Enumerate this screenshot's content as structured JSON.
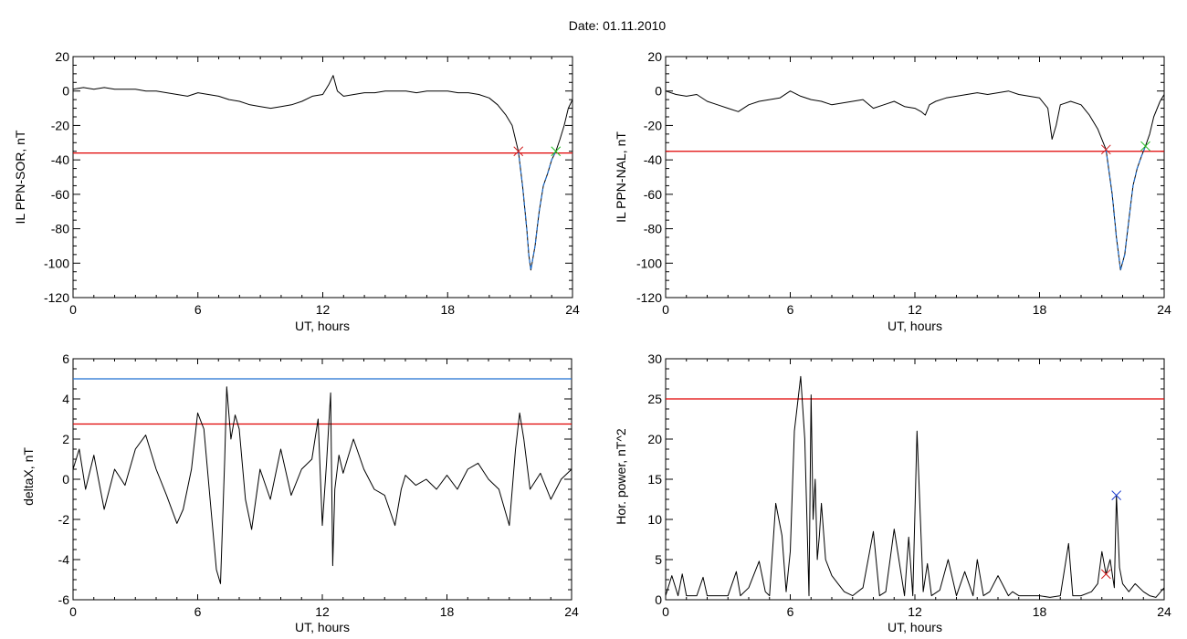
{
  "page": {
    "date_label": "Date:  01.11.2010"
  },
  "colors": {
    "data_line": "#000000",
    "threshold_red": "#e00000",
    "threshold_blue": "#1f6fd0",
    "highlight_blue": "#1f6fd0",
    "marker_red": "#d02020",
    "marker_green": "#20c020",
    "marker_blue": "#2040d0"
  },
  "chart_data": [
    {
      "type": "line",
      "id": "sor",
      "xlabel": "UT, hours",
      "ylabel": "IL PPN-SOR, nT",
      "xlim": [
        0,
        24
      ],
      "ylim": [
        -120,
        20
      ],
      "xticks": [
        0,
        6,
        12,
        18,
        24
      ],
      "yticks": [
        20,
        0,
        -20,
        -40,
        -60,
        -80,
        -100,
        -120
      ],
      "threshold": {
        "value": -36,
        "color": "#e00000"
      },
      "highlight": {
        "x_from": 21.4,
        "x_to": 23.2,
        "color": "#1f6fd0"
      },
      "markers": [
        {
          "x": 21.4,
          "y": -35,
          "color": "#d02020"
        },
        {
          "x": 23.2,
          "y": -35,
          "color": "#20c020"
        }
      ],
      "series": [
        {
          "x": [
            0,
            0.5,
            1,
            1.5,
            2,
            2.5,
            3,
            3.5,
            4,
            4.5,
            5,
            5.5,
            6,
            6.5,
            7,
            7.5,
            8,
            8.5,
            9,
            9.5,
            10,
            10.5,
            11,
            11.5,
            12,
            12.3,
            12.5,
            12.7,
            13,
            13.5,
            14,
            14.5,
            15,
            15.5,
            16,
            16.5,
            17,
            17.5,
            18,
            18.5,
            19,
            19.5,
            20,
            20.4,
            20.8,
            21.1,
            21.4,
            21.6,
            21.8,
            21.9,
            22.0,
            22.2,
            22.4,
            22.6,
            22.8,
            23.0,
            23.2,
            23.4,
            23.6,
            23.8,
            24
          ],
          "y": [
            1,
            2,
            1,
            2,
            1,
            1,
            1,
            0,
            0,
            -1,
            -2,
            -3,
            -1,
            -2,
            -3,
            -5,
            -6,
            -8,
            -9,
            -10,
            -9,
            -8,
            -6,
            -3,
            -2,
            4,
            9,
            0,
            -3,
            -2,
            -1,
            -1,
            0,
            0,
            0,
            -1,
            0,
            0,
            0,
            -1,
            -1,
            -2,
            -4,
            -8,
            -14,
            -20,
            -35,
            -55,
            -80,
            -95,
            -104,
            -90,
            -70,
            -55,
            -48,
            -40,
            -35,
            -28,
            -20,
            -10,
            -5
          ]
        }
      ]
    },
    {
      "type": "line",
      "id": "nal",
      "xlabel": "UT, hours",
      "ylabel": "IL PPN-NAL, nT",
      "xlim": [
        0,
        24
      ],
      "ylim": [
        -120,
        20
      ],
      "xticks": [
        0,
        6,
        12,
        18,
        24
      ],
      "yticks": [
        20,
        0,
        -20,
        -40,
        -60,
        -80,
        -100,
        -120
      ],
      "threshold": {
        "value": -35,
        "color": "#e00000"
      },
      "highlight": {
        "x_from": 21.2,
        "x_to": 23.1,
        "color": "#1f6fd0"
      },
      "markers": [
        {
          "x": 21.2,
          "y": -34,
          "color": "#d02020"
        },
        {
          "x": 23.1,
          "y": -32,
          "color": "#20c020"
        }
      ],
      "series": [
        {
          "x": [
            0,
            0.5,
            1,
            1.5,
            2,
            2.5,
            3,
            3.5,
            4,
            4.5,
            5,
            5.5,
            6,
            6.5,
            7,
            7.5,
            8,
            8.5,
            9,
            9.5,
            10,
            10.5,
            11,
            11.5,
            12,
            12.3,
            12.5,
            12.7,
            13,
            13.5,
            14,
            14.5,
            15,
            15.5,
            16,
            16.5,
            17,
            17.5,
            18,
            18.4,
            18.6,
            18.8,
            19,
            19.5,
            20,
            20.4,
            20.8,
            21.2,
            21.5,
            21.7,
            21.9,
            22.1,
            22.3,
            22.5,
            22.7,
            22.9,
            23.1,
            23.3,
            23.5,
            23.8,
            24
          ],
          "y": [
            0,
            -2,
            -3,
            -2,
            -6,
            -8,
            -10,
            -12,
            -8,
            -6,
            -5,
            -4,
            0,
            -3,
            -5,
            -6,
            -8,
            -7,
            -6,
            -5,
            -10,
            -8,
            -6,
            -9,
            -10,
            -12,
            -14,
            -8,
            -6,
            -4,
            -3,
            -2,
            -1,
            -2,
            -1,
            0,
            -2,
            -3,
            -4,
            -10,
            -28,
            -20,
            -8,
            -6,
            -8,
            -14,
            -22,
            -34,
            -60,
            -85,
            -104,
            -95,
            -75,
            -55,
            -45,
            -38,
            -32,
            -25,
            -15,
            -6,
            -2
          ]
        }
      ]
    },
    {
      "type": "line",
      "id": "deltax",
      "xlabel": "UT, hours",
      "ylabel": "deltaX, nT",
      "xlim": [
        0,
        24
      ],
      "ylim": [
        -6,
        6
      ],
      "xticks": [
        0,
        6,
        12,
        18,
        24
      ],
      "yticks": [
        6,
        4,
        2,
        0,
        -2,
        -4,
        -6
      ],
      "thresholds": [
        {
          "value": 5.0,
          "color": "#1f6fd0"
        },
        {
          "value": 2.75,
          "color": "#e00000"
        }
      ],
      "series": [
        {
          "x": [
            0,
            0.3,
            0.6,
            1,
            1.5,
            2,
            2.5,
            3,
            3.5,
            4,
            4.5,
            5,
            5.3,
            5.7,
            6,
            6.3,
            6.6,
            6.9,
            7.1,
            7.3,
            7.4,
            7.6,
            7.8,
            8,
            8.3,
            8.6,
            9,
            9.5,
            10,
            10.5,
            11,
            11.5,
            11.8,
            12,
            12.2,
            12.4,
            12.5,
            12.6,
            12.8,
            13,
            13.5,
            14,
            14.5,
            15,
            15.5,
            15.8,
            16,
            16.5,
            17,
            17.5,
            18,
            18.5,
            19,
            19.5,
            20,
            20.5,
            21,
            21.3,
            21.5,
            21.7,
            22,
            22.5,
            23,
            23.5,
            24
          ],
          "y": [
            0.5,
            1.5,
            -0.5,
            1.2,
            -1.5,
            0.5,
            -0.3,
            1.5,
            2.2,
            0.5,
            -0.8,
            -2.2,
            -1.5,
            0.5,
            3.3,
            2.5,
            -1.0,
            -4.5,
            -5.2,
            1.0,
            4.6,
            2.0,
            3.2,
            2.5,
            -1.0,
            -2.5,
            0.5,
            -1.0,
            1.5,
            -0.8,
            0.5,
            1.0,
            3.0,
            -2.3,
            0.8,
            4.3,
            -4.3,
            -0.5,
            1.2,
            0.3,
            2.0,
            0.5,
            -0.5,
            -0.8,
            -2.3,
            -0.5,
            0.2,
            -0.3,
            0.0,
            -0.5,
            0.2,
            -0.5,
            0.5,
            0.8,
            0.0,
            -0.5,
            -2.3,
            1.5,
            3.3,
            2.0,
            -0.5,
            0.3,
            -1.0,
            0.0,
            0.5
          ]
        }
      ]
    },
    {
      "type": "line",
      "id": "power",
      "xlabel": "UT, hours",
      "ylabel": "Hor. power, nT^2",
      "xlim": [
        0,
        24
      ],
      "ylim": [
        0,
        30
      ],
      "xticks": [
        0,
        6,
        12,
        18,
        24
      ],
      "yticks": [
        30,
        25,
        20,
        15,
        10,
        5,
        0
      ],
      "threshold": {
        "value": 25,
        "color": "#e00000"
      },
      "markers": [
        {
          "x": 21.2,
          "y": 3.2,
          "color": "#d02020"
        },
        {
          "x": 21.7,
          "y": 13.0,
          "color": "#2040d0"
        }
      ],
      "series": [
        {
          "x": [
            0,
            0.3,
            0.6,
            0.8,
            1,
            1.5,
            1.8,
            2,
            2.5,
            3,
            3.4,
            3.6,
            4,
            4.5,
            4.8,
            5,
            5.3,
            5.6,
            5.8,
            6,
            6.2,
            6.5,
            6.7,
            6.9,
            7.0,
            7.1,
            7.2,
            7.3,
            7.4,
            7.5,
            7.7,
            8,
            8.3,
            8.6,
            9,
            9.5,
            10,
            10.3,
            10.6,
            11,
            11.5,
            11.7,
            11.9,
            12.1,
            12.4,
            12.6,
            12.8,
            13.2,
            13.6,
            14,
            14.4,
            14.8,
            15,
            15.3,
            15.6,
            16,
            16.5,
            16.7,
            17,
            17.5,
            18,
            18.5,
            19,
            19.4,
            19.6,
            20,
            20.5,
            20.8,
            21.0,
            21.2,
            21.4,
            21.6,
            21.7,
            21.85,
            22,
            22.3,
            22.6,
            23,
            23.3,
            23.6,
            24
          ],
          "y": [
            0.5,
            3.0,
            0.5,
            3.2,
            0.5,
            0.5,
            2.8,
            0.5,
            0.5,
            0.5,
            3.5,
            0.5,
            1.5,
            4.8,
            1.0,
            0.5,
            12.0,
            8.0,
            1.0,
            6.0,
            21.0,
            27.8,
            20.0,
            0.5,
            25.5,
            10.0,
            15.0,
            5.0,
            8.0,
            12.0,
            5.0,
            3.0,
            2.0,
            1.0,
            0.5,
            1.5,
            8.5,
            0.5,
            1.0,
            8.8,
            0.5,
            7.8,
            0.5,
            21.0,
            1.0,
            4.5,
            0.5,
            1.2,
            5.0,
            0.5,
            3.5,
            0.5,
            5.0,
            0.5,
            1.0,
            3.0,
            0.5,
            1.0,
            0.5,
            0.5,
            0.5,
            0.3,
            0.5,
            7.0,
            0.5,
            0.5,
            1.0,
            2.0,
            6.0,
            3.2,
            5.0,
            1.5,
            13.0,
            4.0,
            2.0,
            1.0,
            2.0,
            1.0,
            0.5,
            0.3,
            1.5
          ]
        }
      ]
    }
  ]
}
